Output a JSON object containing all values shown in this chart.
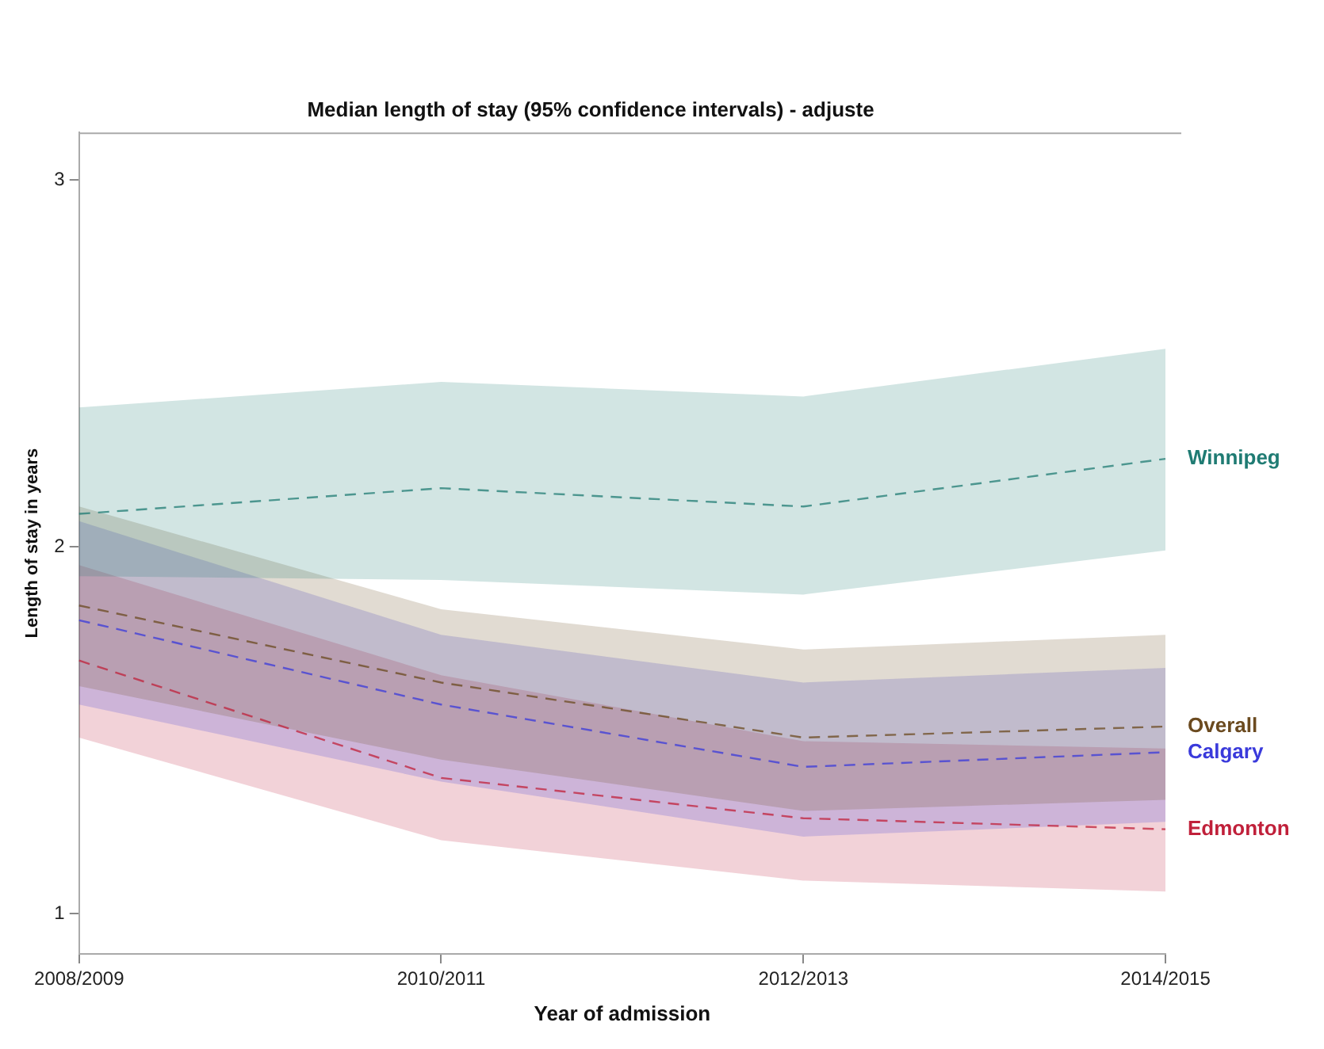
{
  "chart_data": {
    "type": "line",
    "title": "Median length of stay (95% confidence intervals) - adjuste",
    "xlabel": "Year of admission",
    "ylabel": "Length of stay in years",
    "categories": [
      "2008/2009",
      "2010/2011",
      "2012/2013",
      "2014/2015"
    ],
    "ylim": [
      0.89,
      3.13
    ],
    "yticks": [
      1,
      2,
      3
    ],
    "legend": false,
    "line_style": "dashed",
    "marker": "none",
    "series": [
      {
        "name": "Winnipeg",
        "color": "#1f7b73",
        "values": [
          2.09,
          2.16,
          2.11,
          2.24
        ],
        "lower": [
          1.92,
          1.91,
          1.87,
          1.99
        ],
        "upper": [
          2.38,
          2.45,
          2.41,
          2.54
        ]
      },
      {
        "name": "Overall",
        "color": "#6b4a1f",
        "values": [
          1.84,
          1.63,
          1.48,
          1.51
        ],
        "lower": [
          1.62,
          1.42,
          1.28,
          1.31
        ],
        "upper": [
          2.11,
          1.83,
          1.72,
          1.76
        ]
      },
      {
        "name": "Calgary",
        "color": "#3a3adb",
        "values": [
          1.8,
          1.57,
          1.4,
          1.44
        ],
        "lower": [
          1.57,
          1.36,
          1.21,
          1.25
        ],
        "upper": [
          2.07,
          1.76,
          1.63,
          1.67
        ]
      },
      {
        "name": "Edmonton",
        "color": "#c0203a",
        "values": [
          1.69,
          1.37,
          1.26,
          1.23
        ],
        "lower": [
          1.48,
          1.2,
          1.09,
          1.06
        ],
        "upper": [
          1.95,
          1.65,
          1.47,
          1.45
        ]
      }
    ]
  }
}
